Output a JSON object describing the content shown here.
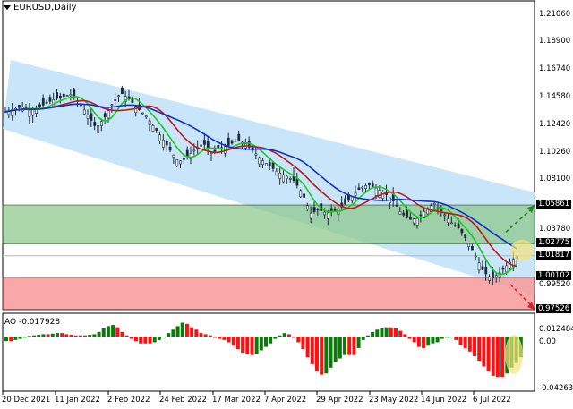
{
  "header": {
    "symbol_label": "EURUSD,Daily"
  },
  "indicator": {
    "label": "AO -0.017928",
    "name": "AO",
    "value": "-0.017928"
  },
  "colors": {
    "channel": "#c2e2f8",
    "green_zone": "#8fca8f",
    "red_zone": "#f79a9a",
    "ma_fast": "#1ec81e",
    "ma_mid": "#c01818",
    "ma_slow": "#1030d0",
    "ao_up": "#0a7a0a",
    "ao_down": "#ff1010",
    "candle": "#1a2a3a",
    "highlight": "#f5e27a"
  },
  "price_axis": {
    "ticks": [
      "1.21060",
      "1.18900",
      "1.16740",
      "1.14580",
      "1.12420",
      "1.10260",
      "1.08100",
      "1.03780",
      "0.99520"
    ],
    "badges": [
      "1.05861",
      "1.02775",
      "1.01817",
      "1.00102",
      "0.97526"
    ]
  },
  "ao_axis": {
    "ticks": [
      "0.012484",
      "0.00",
      "-0.042635"
    ]
  },
  "time_axis": {
    "ticks": [
      "20 Dec 2021",
      "11 Jan 2022",
      "2 Feb 2022",
      "24 Feb 2022",
      "17 Mar 2022",
      "7 Apr 2022",
      "29 Apr 2022",
      "23 May 2022",
      "14 Jun 2022",
      "6 Jul 2022"
    ]
  },
  "chart_data": [
    {
      "type": "candlestick",
      "title": "EURUSD,Daily",
      "ylim": [
        0.97,
        1.215
      ],
      "x_ticks": [
        "20 Dec 2021",
        "11 Jan 2022",
        "2 Feb 2022",
        "24 Feb 2022",
        "17 Mar 2022",
        "7 Apr 2022",
        "29 Apr 2022",
        "23 May 2022",
        "14 Jun 2022",
        "6 Jul 2022"
      ],
      "y_ticks": [
        1.2106,
        1.189,
        1.1674,
        1.1458,
        1.1242,
        1.1026,
        1.081,
        1.0378,
        0.9952
      ],
      "levels": {
        "resistance_zone_top": 1.05861,
        "resistance_zone_bottom": 1.02775,
        "current_price": 1.01817,
        "support_zone_top": 1.00102,
        "support_zone_bottom": 0.97526
      },
      "channel": "descending regression channel (light blue)",
      "moving_averages": [
        "green (fast)",
        "red (medium)",
        "blue (slow)"
      ],
      "close_series_approx": [
        1.133,
        1.135,
        1.137,
        1.134,
        1.136,
        1.14,
        1.143,
        1.145,
        1.147,
        1.14,
        1.13,
        1.12,
        1.128,
        1.14,
        1.148,
        1.143,
        1.136,
        1.13,
        1.121,
        1.112,
        1.102,
        1.093,
        1.097,
        1.103,
        1.108,
        1.1,
        1.104,
        1.106,
        1.11,
        1.108,
        1.102,
        1.095,
        1.09,
        1.085,
        1.082,
        1.078,
        1.068,
        1.052,
        1.055,
        1.052,
        1.054,
        1.058,
        1.065,
        1.072,
        1.075,
        1.072,
        1.068,
        1.062,
        1.052,
        1.047,
        1.048,
        1.055,
        1.06,
        1.053,
        1.045,
        1.04,
        1.03,
        1.018,
        1.005,
        1.0,
        1.005,
        1.012,
        1.018
      ],
      "annotations": [
        "green dashed arrow up to ~1.0586",
        "red dashed arrow down to ~0.9753",
        "yellow highlight on latest price"
      ]
    },
    {
      "type": "bar",
      "title": "AO -0.017928",
      "ylim": [
        -0.042635,
        0.012484
      ],
      "values_approx": [
        -0.004,
        -0.004,
        -0.003,
        -0.002,
        -0.001,
        0.0005,
        0.001,
        0.0015,
        0.002,
        0.002,
        0.0025,
        0.003,
        0.003,
        0.002,
        0.0015,
        0.001,
        0.001,
        0.001,
        0.0015,
        0.002,
        0.004,
        0.007,
        0.009,
        0.01,
        0.008,
        0.004,
        0.001,
        -0.002,
        -0.004,
        -0.006,
        -0.006,
        -0.006,
        -0.005,
        -0.003,
        0.0,
        0.003,
        0.006,
        0.009,
        0.012,
        0.011,
        0.008,
        0.006,
        0.003,
        0.002,
        0.001,
        -0.001,
        -0.002,
        -0.003,
        -0.005,
        -0.008,
        -0.011,
        -0.014,
        -0.015,
        -0.016,
        -0.015,
        -0.012,
        -0.009,
        -0.006,
        -0.002,
        0.001,
        0.003,
        0.002,
        -0.001,
        -0.005,
        -0.011,
        -0.018,
        -0.024,
        -0.03,
        -0.033,
        -0.032,
        -0.027,
        -0.022,
        -0.019,
        -0.016,
        -0.016,
        -0.016,
        -0.01,
        -0.003,
        0.001,
        0.004,
        0.006,
        0.007,
        0.008,
        0.008,
        0.007,
        0.005,
        0.002,
        -0.002,
        -0.005,
        -0.009,
        -0.01,
        -0.008,
        -0.006,
        -0.005,
        -0.002,
        -0.001,
        0.0,
        -0.003,
        -0.007,
        -0.01,
        -0.013,
        -0.017,
        -0.021,
        -0.026,
        -0.03,
        -0.034,
        -0.035,
        -0.035,
        -0.032,
        -0.027,
        -0.023,
        -0.018
      ]
    }
  ]
}
